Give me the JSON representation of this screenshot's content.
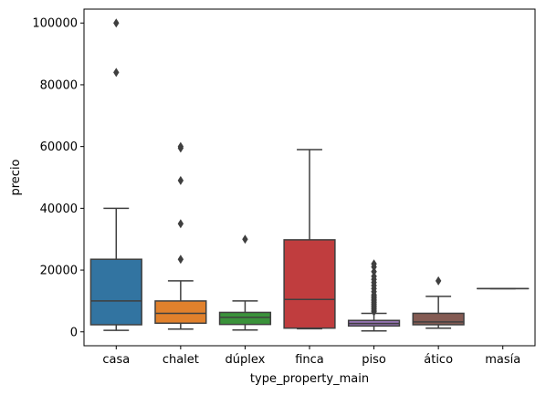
{
  "chart_data": {
    "type": "box",
    "title": "",
    "xlabel": "type_property_main",
    "ylabel": "precio",
    "ylim": [
      -4500,
      104500
    ],
    "yticks": [
      0,
      20000,
      40000,
      60000,
      80000,
      100000
    ],
    "ytick_labels": [
      "0",
      "20000",
      "40000",
      "60000",
      "80000",
      "100000"
    ],
    "grid": false,
    "legend": "none",
    "categories": [
      "casa",
      "chalet",
      "dúplex",
      "finca",
      "piso",
      "ático",
      "masía"
    ],
    "boxes": [
      {
        "category": "casa",
        "color": "#3274a1",
        "whisker_low": 500,
        "q1": 2300,
        "median": 10000,
        "q3": 23500,
        "whisker_high": 40000,
        "outliers": [
          84000,
          100000
        ]
      },
      {
        "category": "chalet",
        "color": "#e1812c",
        "whisker_low": 900,
        "q1": 2800,
        "median": 6000,
        "q3": 10000,
        "whisker_high": 16500,
        "outliers": [
          23500,
          35000,
          49000,
          59500,
          60000
        ]
      },
      {
        "category": "dúplex",
        "color": "#3a923a",
        "whisker_low": 600,
        "q1": 2400,
        "median": 4700,
        "q3": 6300,
        "whisker_high": 10000,
        "outliers": [
          30000
        ]
      },
      {
        "category": "finca",
        "color": "#c03d3e",
        "whisker_low": 1000,
        "q1": 1200,
        "median": 10500,
        "q3": 29800,
        "whisker_high": 59000,
        "outliers": []
      },
      {
        "category": "piso",
        "color": "#9372b2",
        "whisker_low": 300,
        "q1": 1900,
        "median": 2700,
        "q3": 3700,
        "whisker_high": 6000,
        "outliers": [
          6500,
          7000,
          7500,
          8000,
          8500,
          9000,
          9500,
          10000,
          10500,
          11000,
          11500,
          12000,
          13000,
          14000,
          15000,
          16000,
          17000,
          18000,
          19500,
          21000,
          22000
        ]
      },
      {
        "category": "ático",
        "color": "#845b53",
        "whisker_low": 1200,
        "q1": 2300,
        "median": 3200,
        "q3": 6000,
        "whisker_high": 11500,
        "outliers": [
          16500
        ]
      },
      {
        "category": "masía",
        "color": "#d684bd",
        "whisker_low": 14000,
        "q1": 14000,
        "median": 14000,
        "q3": 14000,
        "whisker_high": 14000,
        "outliers": []
      }
    ]
  }
}
